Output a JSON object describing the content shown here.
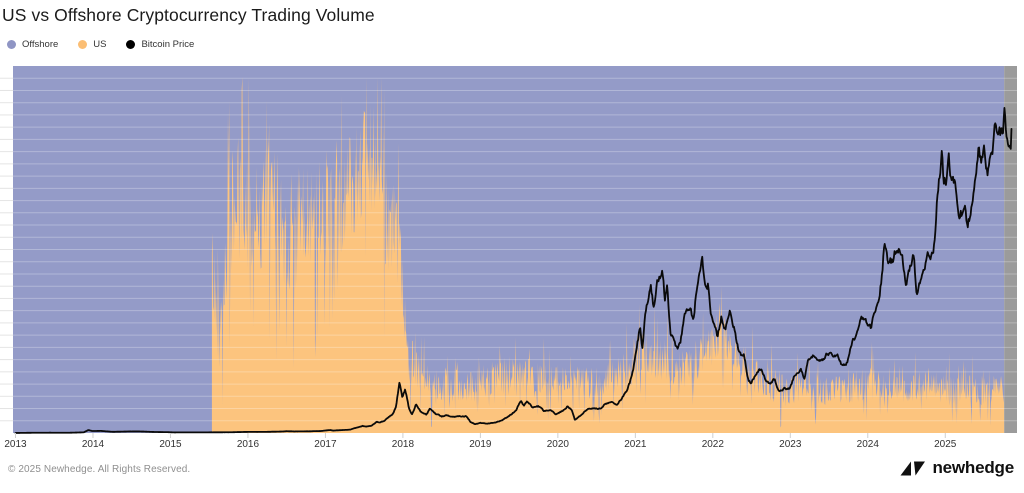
{
  "title": "US vs Offshore Cryptocurrency Trading Volume",
  "legend": [
    {
      "label": "Offshore",
      "color": "#8F95C4"
    },
    {
      "label": "US",
      "color": "#FBBE74"
    },
    {
      "label": "Bitcoin Price",
      "color": "#000000"
    }
  ],
  "footer": {
    "copyright": "© 2025 Newhedge. All Rights Reserved.",
    "brand": "newhedge"
  },
  "chart_data": {
    "type": "area",
    "subtype": "100% stacked share area (US + Offshore = 100%) with Bitcoin price overlay line",
    "title": "US vs Offshore Cryptocurrency Trading Volume",
    "x_ticks": [
      2013,
      2014,
      2015,
      2016,
      2017,
      2018,
      2019,
      2020,
      2021,
      2022,
      2023,
      2024,
      2025
    ],
    "x_min": 2012.97,
    "plot_right_edge": 2025.93,
    "volume_data_start": 2015.535,
    "volume_data_end": 2025.76,
    "price_data_end": 2025.86,
    "share_ylim_pct": [
      0,
      100
    ],
    "price_ylim_usd": [
      0,
      140000
    ],
    "grid": {
      "h_divisions": 30,
      "line_color": "rgba(255,255,255,0.28)",
      "stub_color": "#e4e4e4"
    },
    "colors": {
      "offshore_area": "#949BC8",
      "us_area": "#FCC47E",
      "bitcoin_line": "#0A0A0A",
      "no_data_region": "#9B9B9B",
      "tick": "#CFCFCF"
    },
    "series": [
      {
        "name": "US",
        "role": "us_share_area",
        "keypoint_format": [
          "year_decimal",
          "us_share_pct",
          "daily_noise_amp_pct"
        ],
        "keypoints": [
          [
            2015.535,
            46,
            22
          ],
          [
            2015.57,
            38,
            20
          ],
          [
            2015.62,
            30,
            16
          ],
          [
            2015.68,
            40,
            20
          ],
          [
            2015.74,
            52,
            24
          ],
          [
            2015.82,
            62,
            24
          ],
          [
            2015.92,
            66,
            25
          ],
          [
            2016.0,
            62,
            26
          ],
          [
            2016.1,
            58,
            26
          ],
          [
            2016.22,
            64,
            26
          ],
          [
            2016.34,
            62,
            25
          ],
          [
            2016.45,
            58,
            26
          ],
          [
            2016.55,
            54,
            26
          ],
          [
            2016.65,
            57,
            26
          ],
          [
            2016.75,
            54,
            26
          ],
          [
            2016.85,
            59,
            25
          ],
          [
            2016.95,
            62,
            24
          ],
          [
            2017.05,
            60,
            25
          ],
          [
            2017.15,
            58,
            26
          ],
          [
            2017.25,
            64,
            25
          ],
          [
            2017.35,
            69,
            23
          ],
          [
            2017.45,
            73,
            22
          ],
          [
            2017.55,
            74,
            22
          ],
          [
            2017.65,
            68,
            24
          ],
          [
            2017.75,
            62,
            24
          ],
          [
            2017.85,
            57,
            23
          ],
          [
            2017.93,
            50,
            20
          ],
          [
            2017.99,
            40,
            16
          ],
          [
            2018.04,
            26,
            12
          ],
          [
            2018.1,
            19,
            10
          ],
          [
            2018.2,
            16,
            9
          ],
          [
            2018.35,
            14,
            8
          ],
          [
            2018.5,
            13.5,
            7
          ],
          [
            2018.7,
            13,
            7
          ],
          [
            2018.9,
            12.5,
            7
          ],
          [
            2019.1,
            14,
            8
          ],
          [
            2019.3,
            15.5,
            8
          ],
          [
            2019.5,
            16,
            8
          ],
          [
            2019.7,
            14.5,
            8
          ],
          [
            2019.9,
            14,
            7
          ],
          [
            2020.1,
            14.5,
            7
          ],
          [
            2020.3,
            14,
            7
          ],
          [
            2020.5,
            13.5,
            7
          ],
          [
            2020.7,
            15,
            7
          ],
          [
            2020.9,
            17,
            8
          ],
          [
            2021.05,
            20,
            9
          ],
          [
            2021.2,
            21.5,
            9
          ],
          [
            2021.35,
            20,
            9
          ],
          [
            2021.5,
            18,
            8
          ],
          [
            2021.65,
            17.5,
            8
          ],
          [
            2021.8,
            19.5,
            8
          ],
          [
            2021.95,
            23,
            9
          ],
          [
            2022.05,
            25.5,
            9
          ],
          [
            2022.15,
            26,
            9
          ],
          [
            2022.3,
            21.5,
            8
          ],
          [
            2022.45,
            17.5,
            8
          ],
          [
            2022.6,
            14.5,
            7
          ],
          [
            2022.8,
            13,
            7
          ],
          [
            2023.0,
            12,
            6
          ],
          [
            2023.25,
            12,
            6
          ],
          [
            2023.5,
            11.5,
            6
          ],
          [
            2023.75,
            12,
            6
          ],
          [
            2024.0,
            13.5,
            7
          ],
          [
            2024.2,
            13,
            6
          ],
          [
            2024.4,
            12,
            6
          ],
          [
            2024.6,
            12.5,
            6
          ],
          [
            2024.8,
            13,
            6
          ],
          [
            2025.0,
            12,
            6
          ],
          [
            2025.25,
            12,
            6
          ],
          [
            2025.5,
            11.5,
            6
          ],
          [
            2025.76,
            12,
            6
          ]
        ]
      },
      {
        "name": "Offshore",
        "role": "remainder_to_100_pct"
      },
      {
        "name": "Bitcoin Price",
        "role": "price_line",
        "keypoint_format": [
          "year_decimal",
          "price_usd_thousands"
        ],
        "keypoints": [
          [
            2013.0,
            0.013
          ],
          [
            2013.25,
            0.1
          ],
          [
            2013.45,
            0.11
          ],
          [
            2013.7,
            0.1
          ],
          [
            2013.88,
            0.25
          ],
          [
            2013.94,
            1.12
          ],
          [
            2013.99,
            0.76
          ],
          [
            2014.1,
            0.8
          ],
          [
            2014.25,
            0.45
          ],
          [
            2014.45,
            0.58
          ],
          [
            2014.6,
            0.6
          ],
          [
            2014.8,
            0.38
          ],
          [
            2014.97,
            0.32
          ],
          [
            2015.05,
            0.22
          ],
          [
            2015.25,
            0.24
          ],
          [
            2015.5,
            0.25
          ],
          [
            2015.75,
            0.28
          ],
          [
            2015.9,
            0.36
          ],
          [
            2016.0,
            0.43
          ],
          [
            2016.2,
            0.42
          ],
          [
            2016.45,
            0.57
          ],
          [
            2016.5,
            0.68
          ],
          [
            2016.6,
            0.6
          ],
          [
            2016.8,
            0.64
          ],
          [
            2016.95,
            0.78
          ],
          [
            2017.0,
            0.98
          ],
          [
            2017.06,
            1.15
          ],
          [
            2017.1,
            0.92
          ],
          [
            2017.2,
            1.08
          ],
          [
            2017.32,
            1.3
          ],
          [
            2017.42,
            2.2
          ],
          [
            2017.48,
            2.7
          ],
          [
            2017.52,
            2.45
          ],
          [
            2017.6,
            2.8
          ],
          [
            2017.66,
            4.3
          ],
          [
            2017.7,
            4.0
          ],
          [
            2017.76,
            4.6
          ],
          [
            2017.82,
            6.1
          ],
          [
            2017.87,
            7.3
          ],
          [
            2017.91,
            9.8
          ],
          [
            2017.955,
            19.3
          ],
          [
            2017.99,
            13.6
          ],
          [
            2018.03,
            16.6
          ],
          [
            2018.08,
            9.2
          ],
          [
            2018.12,
            7.0
          ],
          [
            2018.17,
            11.1
          ],
          [
            2018.23,
            8.3
          ],
          [
            2018.3,
            7.0
          ],
          [
            2018.35,
            9.3
          ],
          [
            2018.42,
            7.4
          ],
          [
            2018.5,
            6.3
          ],
          [
            2018.58,
            6.7
          ],
          [
            2018.66,
            6.2
          ],
          [
            2018.74,
            6.5
          ],
          [
            2018.82,
            6.4
          ],
          [
            2018.87,
            4.3
          ],
          [
            2018.93,
            3.3
          ],
          [
            2019.0,
            3.8
          ],
          [
            2019.08,
            3.5
          ],
          [
            2019.2,
            4.0
          ],
          [
            2019.3,
            5.2
          ],
          [
            2019.4,
            7.2
          ],
          [
            2019.46,
            8.6
          ],
          [
            2019.52,
            12.4
          ],
          [
            2019.56,
            10.4
          ],
          [
            2019.6,
            11.9
          ],
          [
            2019.68,
            9.6
          ],
          [
            2019.75,
            10.2
          ],
          [
            2019.82,
            8.3
          ],
          [
            2019.9,
            8.8
          ],
          [
            2019.97,
            7.1
          ],
          [
            2020.05,
            8.3
          ],
          [
            2020.12,
            10.1
          ],
          [
            2020.18,
            8.9
          ],
          [
            2020.22,
            5.0
          ],
          [
            2020.3,
            6.8
          ],
          [
            2020.38,
            9.1
          ],
          [
            2020.48,
            9.3
          ],
          [
            2020.56,
            9.2
          ],
          [
            2020.62,
            11.5
          ],
          [
            2020.7,
            11.8
          ],
          [
            2020.76,
            10.6
          ],
          [
            2020.83,
            13.5
          ],
          [
            2020.88,
            15.5
          ],
          [
            2020.93,
            19.2
          ],
          [
            2020.97,
            23.5
          ],
          [
            2021.0,
            29.0
          ],
          [
            2021.03,
            35.0
          ],
          [
            2021.06,
            40.5
          ],
          [
            2021.09,
            31.5
          ],
          [
            2021.13,
            47.0
          ],
          [
            2021.17,
            52.0
          ],
          [
            2021.2,
            57.5
          ],
          [
            2021.24,
            46.5
          ],
          [
            2021.28,
            57.0
          ],
          [
            2021.32,
            59.5
          ],
          [
            2021.345,
            63.5
          ],
          [
            2021.38,
            51.5
          ],
          [
            2021.41,
            57.0
          ],
          [
            2021.455,
            37.0
          ],
          [
            2021.5,
            35.5
          ],
          [
            2021.54,
            31.8
          ],
          [
            2021.58,
            34.0
          ],
          [
            2021.62,
            42.0
          ],
          [
            2021.66,
            47.5
          ],
          [
            2021.71,
            48.8
          ],
          [
            2021.75,
            42.5
          ],
          [
            2021.79,
            55.0
          ],
          [
            2021.82,
            62.0
          ],
          [
            2021.86,
            66.5
          ],
          [
            2021.9,
            58.5
          ],
          [
            2021.94,
            57.0
          ],
          [
            2021.97,
            46.8
          ],
          [
            2022.01,
            43.0
          ],
          [
            2022.06,
            36.8
          ],
          [
            2022.11,
            44.2
          ],
          [
            2022.16,
            38.8
          ],
          [
            2022.22,
            47.3
          ],
          [
            2022.28,
            39.5
          ],
          [
            2022.34,
            30.1
          ],
          [
            2022.4,
            29.7
          ],
          [
            2022.46,
            20.0
          ],
          [
            2022.5,
            19.2
          ],
          [
            2022.56,
            23.2
          ],
          [
            2022.62,
            24.3
          ],
          [
            2022.68,
            19.8
          ],
          [
            2022.74,
            19.2
          ],
          [
            2022.8,
            20.4
          ],
          [
            2022.85,
            15.9
          ],
          [
            2022.92,
            17.1
          ],
          [
            2022.99,
            16.6
          ],
          [
            2023.04,
            21.0
          ],
          [
            2023.09,
            23.2
          ],
          [
            2023.14,
            24.6
          ],
          [
            2023.18,
            20.2
          ],
          [
            2023.23,
            28.3
          ],
          [
            2023.3,
            29.4
          ],
          [
            2023.36,
            26.8
          ],
          [
            2023.42,
            27.2
          ],
          [
            2023.48,
            30.6
          ],
          [
            2023.55,
            30.2
          ],
          [
            2023.62,
            29.2
          ],
          [
            2023.66,
            26.0
          ],
          [
            2023.73,
            26.6
          ],
          [
            2023.8,
            34.5
          ],
          [
            2023.86,
            37.3
          ],
          [
            2023.92,
            43.7
          ],
          [
            2023.99,
            42.6
          ],
          [
            2024.04,
            39.6
          ],
          [
            2024.1,
            47.0
          ],
          [
            2024.15,
            52.0
          ],
          [
            2024.19,
            62.5
          ],
          [
            2024.215,
            73.0
          ],
          [
            2024.26,
            64.5
          ],
          [
            2024.32,
            66.0
          ],
          [
            2024.38,
            71.0
          ],
          [
            2024.44,
            67.5
          ],
          [
            2024.5,
            56.5
          ],
          [
            2024.55,
            64.5
          ],
          [
            2024.58,
            68.0
          ],
          [
            2024.6,
            64.5
          ],
          [
            2024.63,
            54.5
          ],
          [
            2024.68,
            59.5
          ],
          [
            2024.72,
            63.5
          ],
          [
            2024.77,
            67.5
          ],
          [
            2024.81,
            66.5
          ],
          [
            2024.845,
            69.5
          ],
          [
            2024.87,
            76.0
          ],
          [
            2024.9,
            91.0
          ],
          [
            2024.93,
            98.0
          ],
          [
            2024.96,
            106.5
          ],
          [
            2024.98,
            93.5
          ],
          [
            2025.01,
            96.5
          ],
          [
            2025.045,
            104.5
          ],
          [
            2025.08,
            97.5
          ],
          [
            2025.12,
            96.0
          ],
          [
            2025.16,
            84.5
          ],
          [
            2025.21,
            84.0
          ],
          [
            2025.25,
            87.5
          ],
          [
            2025.285,
            77.0
          ],
          [
            2025.33,
            85.0
          ],
          [
            2025.37,
            95.0
          ],
          [
            2025.405,
            104.0
          ],
          [
            2025.43,
            109.0
          ],
          [
            2025.47,
            104.0
          ],
          [
            2025.51,
            107.5
          ],
          [
            2025.545,
            101.0
          ],
          [
            2025.58,
            108.0
          ],
          [
            2025.61,
            110.0
          ],
          [
            2025.645,
            119.5
          ],
          [
            2025.68,
            117.0
          ],
          [
            2025.71,
            115.5
          ],
          [
            2025.74,
            113.0
          ],
          [
            2025.765,
            121.5
          ],
          [
            2025.79,
            113.5
          ],
          [
            2025.81,
            110.0
          ],
          [
            2025.83,
            112.5
          ],
          [
            2025.845,
            109.5
          ],
          [
            2025.86,
            124.5
          ]
        ]
      }
    ],
    "legend_position": "top-left",
    "y_axis_labels_visible": false
  }
}
